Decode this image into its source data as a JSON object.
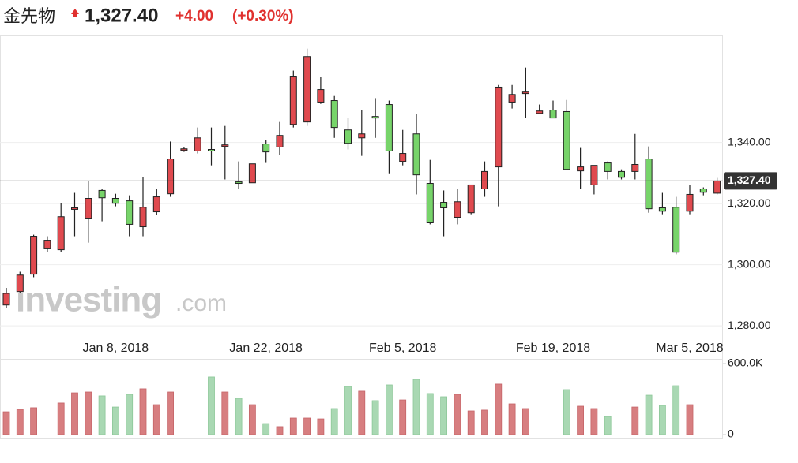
{
  "header": {
    "title": "金先物",
    "last_price": {
      "value": 1327.4,
      "label": "1,327.40"
    },
    "change": "+4.00",
    "change_pct": "(+0.30%)"
  },
  "watermark": {
    "brand": "investing",
    "suffix": ".com"
  },
  "chart_data": {
    "type": "candlestick",
    "categories": [
      null,
      null,
      null,
      null,
      null,
      null,
      null,
      null,
      "Jan 8, 2018",
      null,
      null,
      null,
      null,
      null,
      null,
      null,
      null,
      null,
      null,
      "Jan 22, 2018",
      null,
      null,
      null,
      null,
      null,
      null,
      null,
      null,
      null,
      "Feb 5, 2018",
      null,
      null,
      null,
      null,
      null,
      null,
      null,
      null,
      null,
      null,
      "Feb 19, 2018",
      null,
      null,
      null,
      null,
      null,
      null,
      null,
      null,
      null,
      "Mar 5, 2018",
      null,
      null
    ],
    "open": [
      1286.8,
      1291.2,
      1296.9,
      1305.2,
      1304.9,
      1318.1,
      1315.0,
      1324.3,
      1321.7,
      1320.9,
      1312.4,
      1317.3,
      1323.2,
      1337.4,
      1337.2,
      1337.7,
      1338.7,
      1327.1,
      1326.8,
      1339.5,
      1338.5,
      1345.9,
      1346.7,
      1353.2,
      1353.7,
      1344.1,
      1341.5,
      1348.5,
      1352.4,
      1333.8,
      1342.8,
      1326.6,
      1320.4,
      1315.5,
      1317.0,
      1324.8,
      1332.0,
      1353.2,
      1356.0,
      1349.5,
      1350.6,
      1350.1,
      1330.7,
      1326.1,
      1333.3,
      1330.5,
      1330.5,
      1334.6,
      1318.6,
      1318.8,
      1317.5,
      1324.8,
      1323.4
    ],
    "high": [
      1292.4,
      1297.7,
      1309.8,
      1309.3,
      1320.1,
      1323.5,
      1327.4,
      1324.8,
      1323.2,
      1322.7,
      1328.6,
      1324.8,
      1340.3,
      1338.5,
      1344.9,
      1344.9,
      1345.4,
      1333.8,
      1333.0,
      1340.8,
      1346.7,
      1363.5,
      1370.7,
      1361.4,
      1355.2,
      1348.0,
      1350.6,
      1354.5,
      1353.7,
      1344.1,
      1349.3,
      1334.3,
      1324.3,
      1324.8,
      1326.1,
      1333.8,
      1358.8,
      1358.8,
      1364.5,
      1352.4,
      1353.7,
      1353.9,
      1338.2,
      1332.5,
      1333.8,
      1331.2,
      1342.8,
      1338.7,
      1323.5,
      1322.2,
      1326.1,
      1325.3,
      1328.4
    ],
    "low": [
      1285.8,
      1290.7,
      1295.9,
      1304.1,
      1304.1,
      1309.3,
      1307.2,
      1314.2,
      1319.1,
      1309.3,
      1309.3,
      1316.3,
      1322.2,
      1336.9,
      1336.4,
      1332.5,
      1327.9,
      1324.8,
      1326.8,
      1333.3,
      1335.9,
      1344.9,
      1345.4,
      1352.6,
      1341.5,
      1337.7,
      1335.6,
      1341.5,
      1329.9,
      1332.5,
      1323.0,
      1313.2,
      1309.3,
      1313.2,
      1316.5,
      1322.2,
      1319.1,
      1351.1,
      1348.0,
      1349.3,
      1348.0,
      1331.2,
      1324.8,
      1323.0,
      1327.9,
      1327.9,
      1327.9,
      1317.0,
      1316.5,
      1303.4,
      1316.5,
      1322.7,
      1323.0
    ],
    "close": [
      1290.6,
      1296.6,
      1309.3,
      1308.0,
      1315.7,
      1318.6,
      1321.7,
      1321.9,
      1320.1,
      1313.2,
      1318.8,
      1322.2,
      1334.6,
      1337.9,
      1341.5,
      1337.2,
      1339.2,
      1326.6,
      1333.0,
      1336.9,
      1342.3,
      1361.7,
      1368.1,
      1357.3,
      1344.9,
      1339.7,
      1342.8,
      1348.0,
      1337.2,
      1336.4,
      1329.4,
      1313.7,
      1318.6,
      1320.6,
      1326.1,
      1330.5,
      1358.1,
      1355.7,
      1356.5,
      1350.3,
      1348.0,
      1331.2,
      1332.0,
      1332.5,
      1330.5,
      1328.6,
      1332.8,
      1318.3,
      1317.5,
      1304.1,
      1323.0,
      1323.7,
      1327.4
    ],
    "volume": [
      193000,
      213000,
      227000,
      null,
      267000,
      353000,
      360000,
      327000,
      233000,
      340000,
      387000,
      253000,
      360000,
      null,
      null,
      487000,
      360000,
      307000,
      253000,
      93000,
      67000,
      140000,
      140000,
      133000,
      220000,
      407000,
      367000,
      287000,
      420000,
      293000,
      467000,
      347000,
      320000,
      340000,
      200000,
      207000,
      427000,
      260000,
      220000,
      null,
      null,
      380000,
      240000,
      220000,
      153000,
      null,
      233000,
      333000,
      247000,
      413000,
      253000,
      null,
      null
    ],
    "ylim": [
      1279.5,
      1375
    ],
    "yticks": [
      {
        "value": 1280,
        "label": "1,280.00"
      },
      {
        "value": 1300,
        "label": "1,300.00"
      },
      {
        "value": 1320,
        "label": "1,320.00"
      },
      {
        "value": 1340,
        "label": "1,340.00"
      }
    ],
    "y2lim": [
      0,
      640000
    ],
    "y2ticks": [
      0,
      {
        "value": 600000,
        "label": "600.0K"
      }
    ],
    "grid": true,
    "up_color": "#e04a4f",
    "down_color": "#77d46a",
    "volume_up_color": "#d77e80",
    "volume_down_color": "#a9d8b3"
  }
}
